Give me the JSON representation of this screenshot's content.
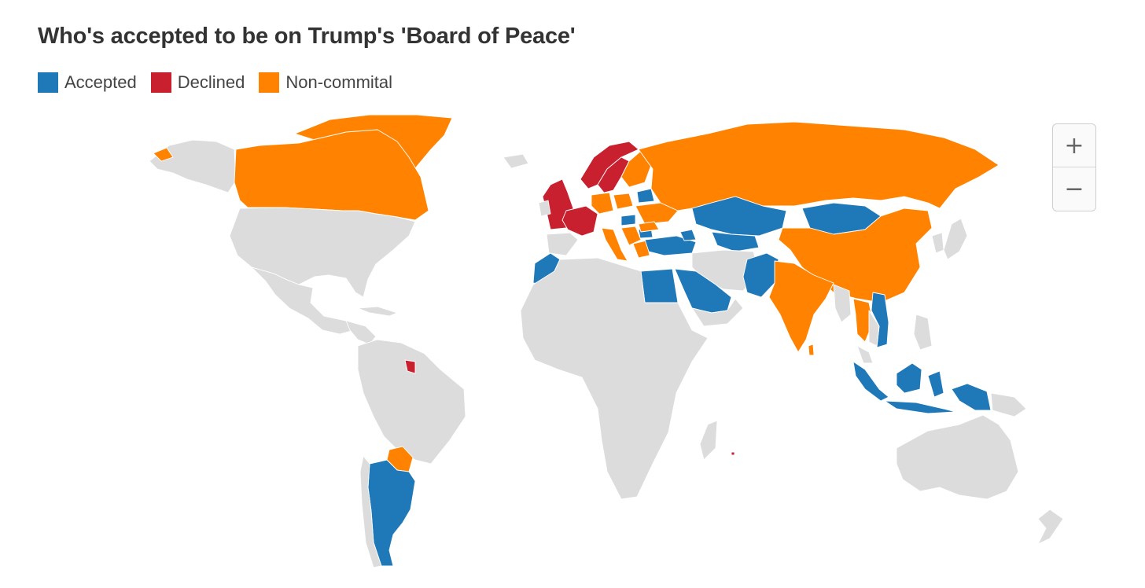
{
  "title": "Who's accepted to be on Trump's 'Board of Peace'",
  "legend": [
    {
      "label": "Accepted",
      "color": "#1f78b8"
    },
    {
      "label": "Declined",
      "color": "#c8202f"
    },
    {
      "label": "Non-commital",
      "color": "#ff8300"
    }
  ],
  "map_colors": {
    "land": "#dcdcdc",
    "border": "#ffffff"
  },
  "zoom": {
    "in_label": "+",
    "out_label": "−"
  },
  "countries": {
    "accepted": [
      "Argentina",
      "Morocco",
      "Egypt",
      "Saudi Arabia",
      "United Arab Emirates",
      "Qatar",
      "Bahrain",
      "Jordan",
      "Turkey",
      "Kazakhstan",
      "Uzbekistan",
      "Kyrgyzstan",
      "Mongolia",
      "Pakistan",
      "Indonesia",
      "Vietnam",
      "Hungary",
      "Bulgaria",
      "Kosovo",
      "Albania",
      "Belarus",
      "Armenia",
      "Azerbaijan"
    ],
    "declined": [
      "United Kingdom",
      "France",
      "Norway",
      "Sweden",
      "Slovenia",
      "French Guiana"
    ],
    "non_commital": [
      "Canada",
      "Greenland",
      "Russia",
      "China",
      "India",
      "Thailand",
      "Paraguay",
      "Finland",
      "Germany",
      "Poland",
      "Italy",
      "Greece",
      "Croatia",
      "Ukraine",
      "Romania",
      "Cyprus",
      "Sri Lanka"
    ]
  }
}
